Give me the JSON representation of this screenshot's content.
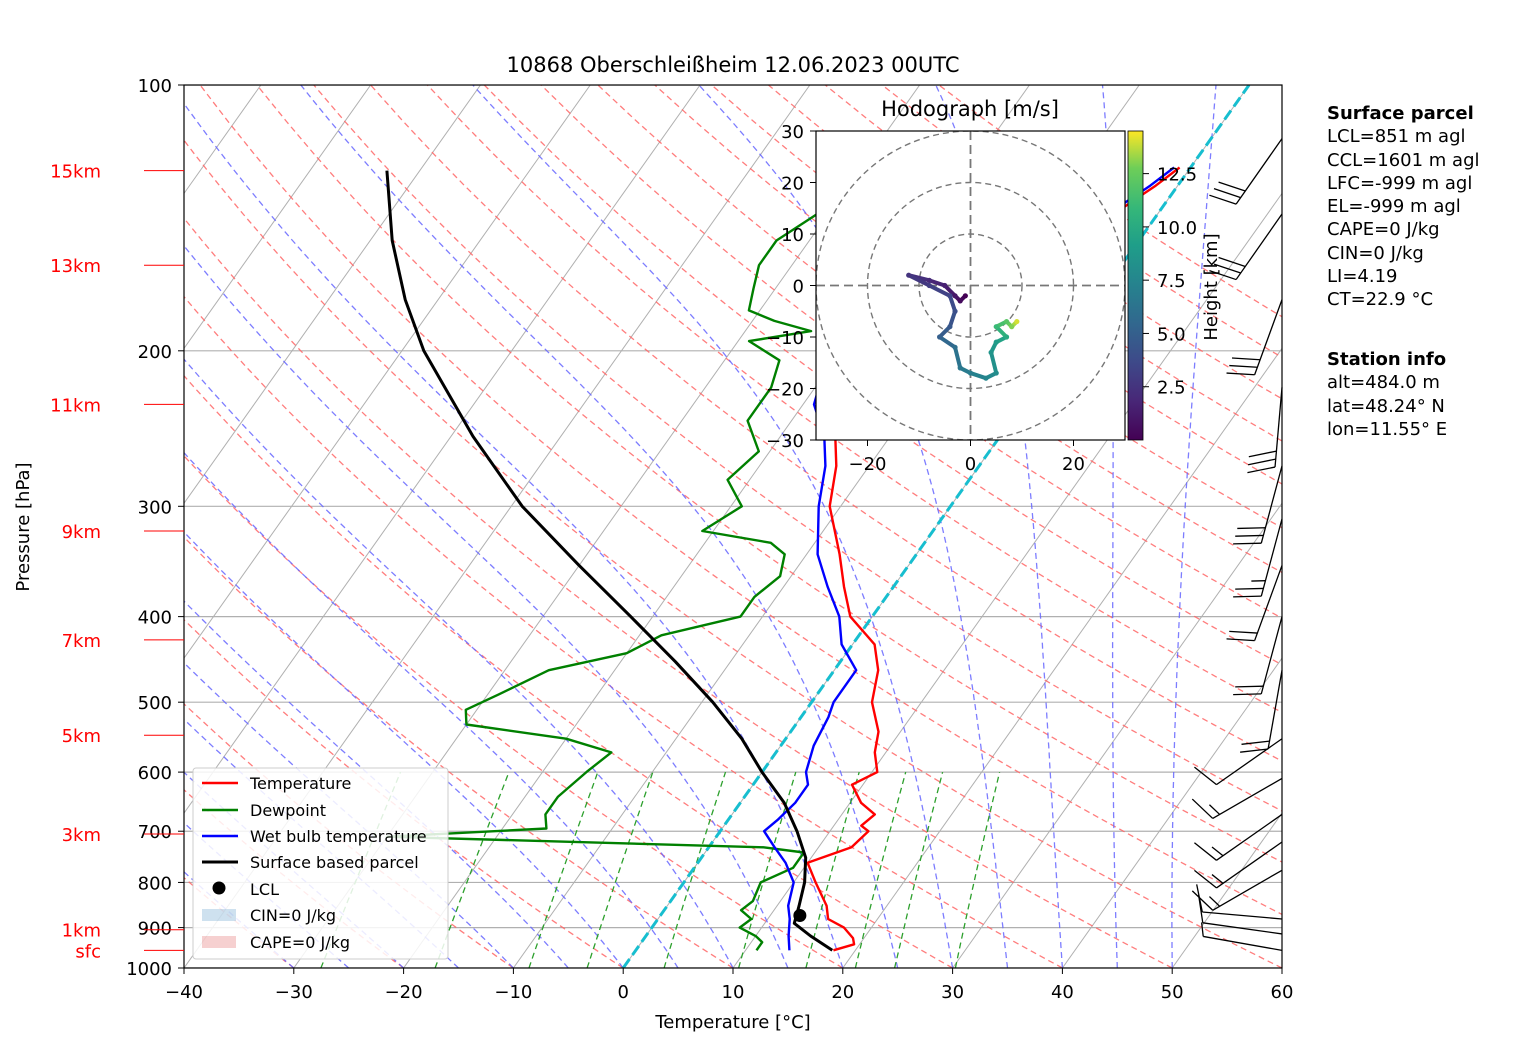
{
  "chart_data": [
    {
      "type": "line",
      "subtype": "skew-T log-P diagram",
      "title": "10868 Oberschleißheim 12.06.2023 00UTC",
      "xlabel": "Temperature [°C]",
      "ylabel": "Pressure [hPa]",
      "x_ticks": [
        "−40",
        "−30",
        "−20",
        "−10",
        "0",
        "10",
        "20",
        "30",
        "40",
        "50",
        "60"
      ],
      "y_ticks": [
        "100",
        "200",
        "300",
        "400",
        "500",
        "600",
        "700",
        "800",
        "900",
        "1000"
      ],
      "xlim": [
        -40,
        60
      ],
      "ylim": [
        1000,
        100
      ],
      "y_scale": "log (inverted)",
      "skew_deg_per_decade": 57,
      "height_labels": [
        {
          "label": "sfc",
          "p": 955
        },
        {
          "label": "1km",
          "p": 905
        },
        {
          "label": "3km",
          "p": 705
        },
        {
          "label": "5km",
          "p": 545
        },
        {
          "label": "7km",
          "p": 425
        },
        {
          "label": "9km",
          "p": 320
        },
        {
          "label": "11km",
          "p": 230
        },
        {
          "label": "13km",
          "p": 160
        },
        {
          "label": "15km",
          "p": 125
        }
      ],
      "series": [
        {
          "name": "Temperature",
          "color": "#ff0000",
          "points": [
            [
              955,
              18
            ],
            [
              940,
              19.5
            ],
            [
              925,
              19
            ],
            [
              900,
              17.5
            ],
            [
              880,
              15.5
            ],
            [
              850,
              14.5
            ],
            [
              800,
              12
            ],
            [
              760,
              10
            ],
            [
              730,
              13
            ],
            [
              700,
              13.5
            ],
            [
              690,
              12.5
            ],
            [
              670,
              13
            ],
            [
              650,
              11
            ],
            [
              620,
              9
            ],
            [
              600,
              10.5
            ],
            [
              570,
              9
            ],
            [
              540,
              8
            ],
            [
              500,
              5.5
            ],
            [
              460,
              4
            ],
            [
              430,
              2
            ],
            [
              400,
              -2
            ],
            [
              370,
              -4.5
            ],
            [
              340,
              -7
            ],
            [
              300,
              -11
            ],
            [
              270,
              -13
            ],
            [
              250,
              -15
            ],
            [
              230,
              -18.5
            ],
            [
              215,
              -20
            ],
            [
              200,
              -21.5
            ],
            [
              190,
              -21
            ],
            [
              185,
              -18
            ],
            [
              175,
              -13
            ],
            [
              165,
              -11
            ],
            [
              155,
              -7
            ],
            [
              145,
              -6
            ],
            [
              140,
              -4
            ],
            [
              130,
              -2
            ],
            [
              124,
              -1
            ]
          ]
        },
        {
          "name": "Dewpoint",
          "color": "#008000",
          "points": [
            [
              955,
              11
            ],
            [
              935,
              11
            ],
            [
              920,
              10
            ],
            [
              900,
              8
            ],
            [
              880,
              8.5
            ],
            [
              860,
              7
            ],
            [
              840,
              7.5
            ],
            [
              800,
              7
            ],
            [
              770,
              9
            ],
            [
              740,
              9
            ],
            [
              730,
              5
            ],
            [
              710,
              -30
            ],
            [
              695,
              -16
            ],
            [
              670,
              -17
            ],
            [
              640,
              -17
            ],
            [
              600,
              -16
            ],
            [
              570,
              -15
            ],
            [
              550,
              -20
            ],
            [
              530,
              -30
            ],
            [
              510,
              -31
            ],
            [
              490,
              -29
            ],
            [
              460,
              -26
            ],
            [
              440,
              -20
            ],
            [
              420,
              -18
            ],
            [
              400,
              -12
            ],
            [
              380,
              -12
            ],
            [
              360,
              -11
            ],
            [
              340,
              -12
            ],
            [
              330,
              -14
            ],
            [
              320,
              -21
            ],
            [
              300,
              -19
            ],
            [
              280,
              -22
            ],
            [
              260,
              -21
            ],
            [
              240,
              -24
            ],
            [
              220,
              -24
            ],
            [
              205,
              -25
            ],
            [
              195,
              -29
            ],
            [
              190,
              -24
            ],
            [
              185,
              -28
            ],
            [
              180,
              -31
            ],
            [
              170,
              -32
            ],
            [
              160,
              -33
            ],
            [
              150,
              -33
            ],
            [
              140,
              -31
            ],
            [
              130,
              -29
            ],
            [
              124,
              -28
            ]
          ]
        },
        {
          "name": "Wet bulb temperature",
          "color": "#0000ff",
          "points": [
            [
              955,
              14
            ],
            [
              920,
              13
            ],
            [
              880,
              12
            ],
            [
              850,
              11
            ],
            [
              800,
              10
            ],
            [
              760,
              8
            ],
            [
              730,
              6
            ],
            [
              700,
              4
            ],
            [
              680,
              4.5
            ],
            [
              650,
              5
            ],
            [
              620,
              5
            ],
            [
              600,
              4
            ],
            [
              560,
              3
            ],
            [
              520,
              2.5
            ],
            [
              500,
              2
            ],
            [
              460,
              2
            ],
            [
              430,
              -1
            ],
            [
              400,
              -3
            ],
            [
              370,
              -6
            ],
            [
              340,
              -9
            ],
            [
              300,
              -12
            ],
            [
              270,
              -14
            ],
            [
              250,
              -16
            ],
            [
              230,
              -19
            ],
            [
              215,
              -20
            ],
            [
              200,
              -21.5
            ],
            [
              190,
              -21
            ],
            [
              185,
              -18.5
            ],
            [
              175,
              -13.5
            ],
            [
              165,
              -11.5
            ],
            [
              155,
              -7.5
            ],
            [
              145,
              -6.5
            ],
            [
              140,
              -4.5
            ],
            [
              130,
              -2.5
            ],
            [
              124,
              -1.5
            ]
          ]
        },
        {
          "name": "Surface based parcel",
          "color": "#000000",
          "points": [
            [
              955,
              17.9
            ],
            [
              920,
              15
            ],
            [
              890,
              12.7
            ],
            [
              850,
              12
            ],
            [
              800,
              11
            ],
            [
              750,
              9.5
            ],
            [
              700,
              7
            ],
            [
              650,
              4
            ],
            [
              600,
              0
            ],
            [
              550,
              -4
            ],
            [
              500,
              -9
            ],
            [
              450,
              -15
            ],
            [
              400,
              -22
            ],
            [
              350,
              -30
            ],
            [
              300,
              -39
            ],
            [
              250,
              -48
            ],
            [
              200,
              -58
            ],
            [
              175,
              -63
            ],
            [
              150,
              -68
            ],
            [
              125,
              -73
            ]
          ]
        }
      ],
      "lcl_point": {
        "name": "LCL",
        "p": 872,
        "t": 12.7
      },
      "cin_label": "CIN=0 J/kg",
      "cape_label": "CAPE=0 J/kg",
      "legend_location": "lower-left",
      "wind_barbs_location": "right",
      "wind_barbs": [
        {
          "p": 955,
          "speed_kt": 5,
          "dir_deg": 280
        },
        {
          "p": 915,
          "speed_kt": 10,
          "dir_deg": 278
        },
        {
          "p": 880,
          "speed_kt": 10,
          "dir_deg": 275
        },
        {
          "p": 775,
          "speed_kt": 15,
          "dir_deg": 240
        },
        {
          "p": 720,
          "speed_kt": 15,
          "dir_deg": 235
        },
        {
          "p": 670,
          "speed_kt": 15,
          "dir_deg": 235
        },
        {
          "p": 610,
          "speed_kt": 15,
          "dir_deg": 240
        },
        {
          "p": 550,
          "speed_kt": 10,
          "dir_deg": 235
        },
        {
          "p": 460,
          "speed_kt": 20,
          "dir_deg": 190
        },
        {
          "p": 400,
          "speed_kt": 20,
          "dir_deg": 195
        },
        {
          "p": 350,
          "speed_kt": 20,
          "dir_deg": 200
        },
        {
          "p": 310,
          "speed_kt": 25,
          "dir_deg": 195
        },
        {
          "p": 270,
          "speed_kt": 30,
          "dir_deg": 195
        },
        {
          "p": 220,
          "speed_kt": 30,
          "dir_deg": 185
        },
        {
          "p": 175,
          "speed_kt": 30,
          "dir_deg": 200
        },
        {
          "p": 140,
          "speed_kt": 30,
          "dir_deg": 215
        },
        {
          "p": 115,
          "speed_kt": 30,
          "dir_deg": 215
        }
      ]
    },
    {
      "type": "scatter",
      "subtype": "hodograph",
      "title": "Hodograph [m/s]",
      "xlim": [
        -30,
        30
      ],
      "ylim": [
        -30,
        30
      ],
      "x_ticks": [
        "−20",
        "0",
        "20"
      ],
      "y_ticks": [
        "30",
        "20",
        "10",
        "0",
        "−10",
        "−20",
        "−30"
      ],
      "rings": [
        10,
        20,
        30
      ],
      "colorbar": {
        "label": "Height [km]",
        "ticks": [
          "2.5",
          "5.0",
          "7.5",
          "10.0",
          "12.5"
        ],
        "range": [
          0,
          14.5
        ],
        "colormap": "viridis"
      },
      "path": [
        {
          "h": 0.0,
          "u": -1,
          "v": -2
        },
        {
          "h": 0.5,
          "u": -2,
          "v": -3
        },
        {
          "h": 1.0,
          "u": -3,
          "v": -2
        },
        {
          "h": 1.5,
          "u": -5,
          "v": 0
        },
        {
          "h": 2.0,
          "u": -8,
          "v": 1
        },
        {
          "h": 2.5,
          "u": -12,
          "v": 2
        },
        {
          "h": 3.0,
          "u": -8,
          "v": 0
        },
        {
          "h": 3.5,
          "u": -4,
          "v": -2
        },
        {
          "h": 4.0,
          "u": -3,
          "v": -5
        },
        {
          "h": 4.5,
          "u": -4,
          "v": -8
        },
        {
          "h": 5.0,
          "u": -6,
          "v": -10
        },
        {
          "h": 6.0,
          "u": -3,
          "v": -12
        },
        {
          "h": 6.5,
          "u": -2,
          "v": -16
        },
        {
          "h": 7.0,
          "u": 0,
          "v": -17
        },
        {
          "h": 7.5,
          "u": 3,
          "v": -18
        },
        {
          "h": 8.0,
          "u": 5,
          "v": -17
        },
        {
          "h": 8.5,
          "u": 4,
          "v": -13
        },
        {
          "h": 9.0,
          "u": 5,
          "v": -11
        },
        {
          "h": 10.0,
          "u": 7,
          "v": -10
        },
        {
          "h": 11.0,
          "u": 5,
          "v": -8
        },
        {
          "h": 12.0,
          "u": 7,
          "v": -7
        },
        {
          "h": 13.0,
          "u": 8,
          "v": -8
        },
        {
          "h": 14.0,
          "u": 9,
          "v": -7
        }
      ]
    }
  ],
  "info": {
    "surface_header": "Surface parcel",
    "surface_lines": [
      "LCL=851 m agl",
      "CCL=1601 m agl",
      "LFC=-999 m agl",
      "EL=-999 m agl",
      "CAPE=0 J/kg",
      "CIN=0 J/kg",
      "LI=4.19",
      "CT=22.9 °C"
    ],
    "station_header": "Station info",
    "station_lines": [
      "alt=484.0 m",
      "lat=48.24° N",
      "lon=11.55° E"
    ]
  },
  "colors": {
    "temperature": "#ff0000",
    "dewpoint": "#008000",
    "wetbulb": "#0000ff",
    "parcel": "#000000",
    "dry_adiabat": "#ff6666",
    "moist_adiabat": "#6666ff",
    "mixing_ratio": "#2ca02c",
    "isotherm_zero": "#17becf",
    "height_label": "#ff0000"
  }
}
